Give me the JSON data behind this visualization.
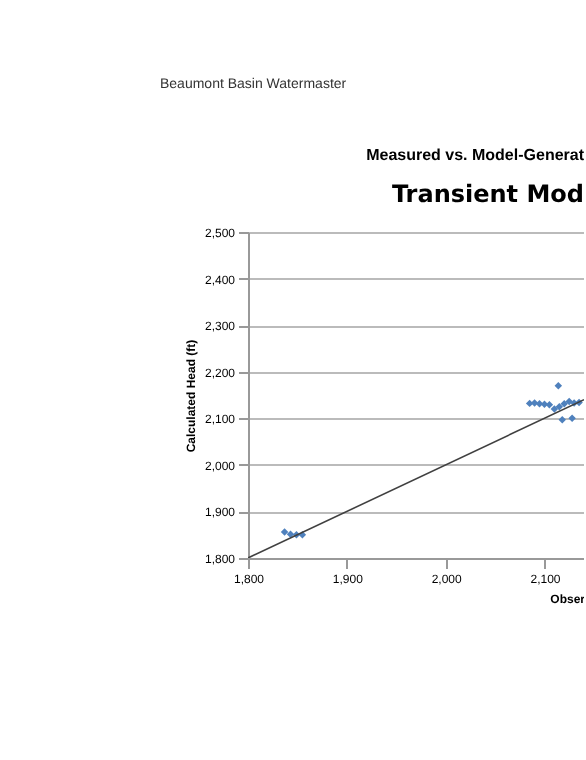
{
  "chart_data": {
    "type": "scatter",
    "title": "Measured vs. Model-Generat",
    "subtitle": "Transient Mod",
    "xlabel": "Obser",
    "ylabel": "Calculated Head (ft)",
    "annotations": [
      "Beaumont Basin Watermaster"
    ],
    "xlim": [
      1800,
      2140
    ],
    "xticks": [
      {
        "value": 1800,
        "label": "1,800"
      },
      {
        "value": 1900,
        "label": "1,900"
      },
      {
        "value": 2000,
        "label": "2,000"
      },
      {
        "value": 2100,
        "label": "2,100"
      }
    ],
    "ylim": [
      1800,
      2500
    ],
    "yticks": [
      {
        "value": 1800,
        "label": "1,800"
      },
      {
        "value": 1900,
        "label": "1,900"
      },
      {
        "value": 2000,
        "label": "2,000"
      },
      {
        "value": 2100,
        "label": "2,100"
      },
      {
        "value": 2200,
        "label": "2,200"
      },
      {
        "value": 2300,
        "label": "2,300"
      },
      {
        "value": 2400,
        "label": "2,400"
      },
      {
        "value": 2500,
        "label": "2,500"
      }
    ],
    "grid": "y",
    "series": [
      {
        "type": "scatter",
        "marker": "diamond",
        "color": "#4f81bd",
        "x": [
          1837,
          1843,
          1849,
          1855,
          2085,
          2090,
          2095,
          2100,
          2105,
          2110,
          2115,
          2120,
          2125,
          2130,
          2135,
          2114,
          2118,
          2128
        ],
        "values": [
          1856,
          1851,
          1850,
          1850,
          2132,
          2133,
          2131,
          2130,
          2129,
          2120,
          2125,
          2131,
          2136,
          2133,
          2134,
          2170,
          2097,
          2100
        ]
      },
      {
        "color": "#404040",
        "type": "line",
        "x": [
          1800,
          2140
        ],
        "values": [
          1800,
          2140
        ]
      }
    ]
  }
}
